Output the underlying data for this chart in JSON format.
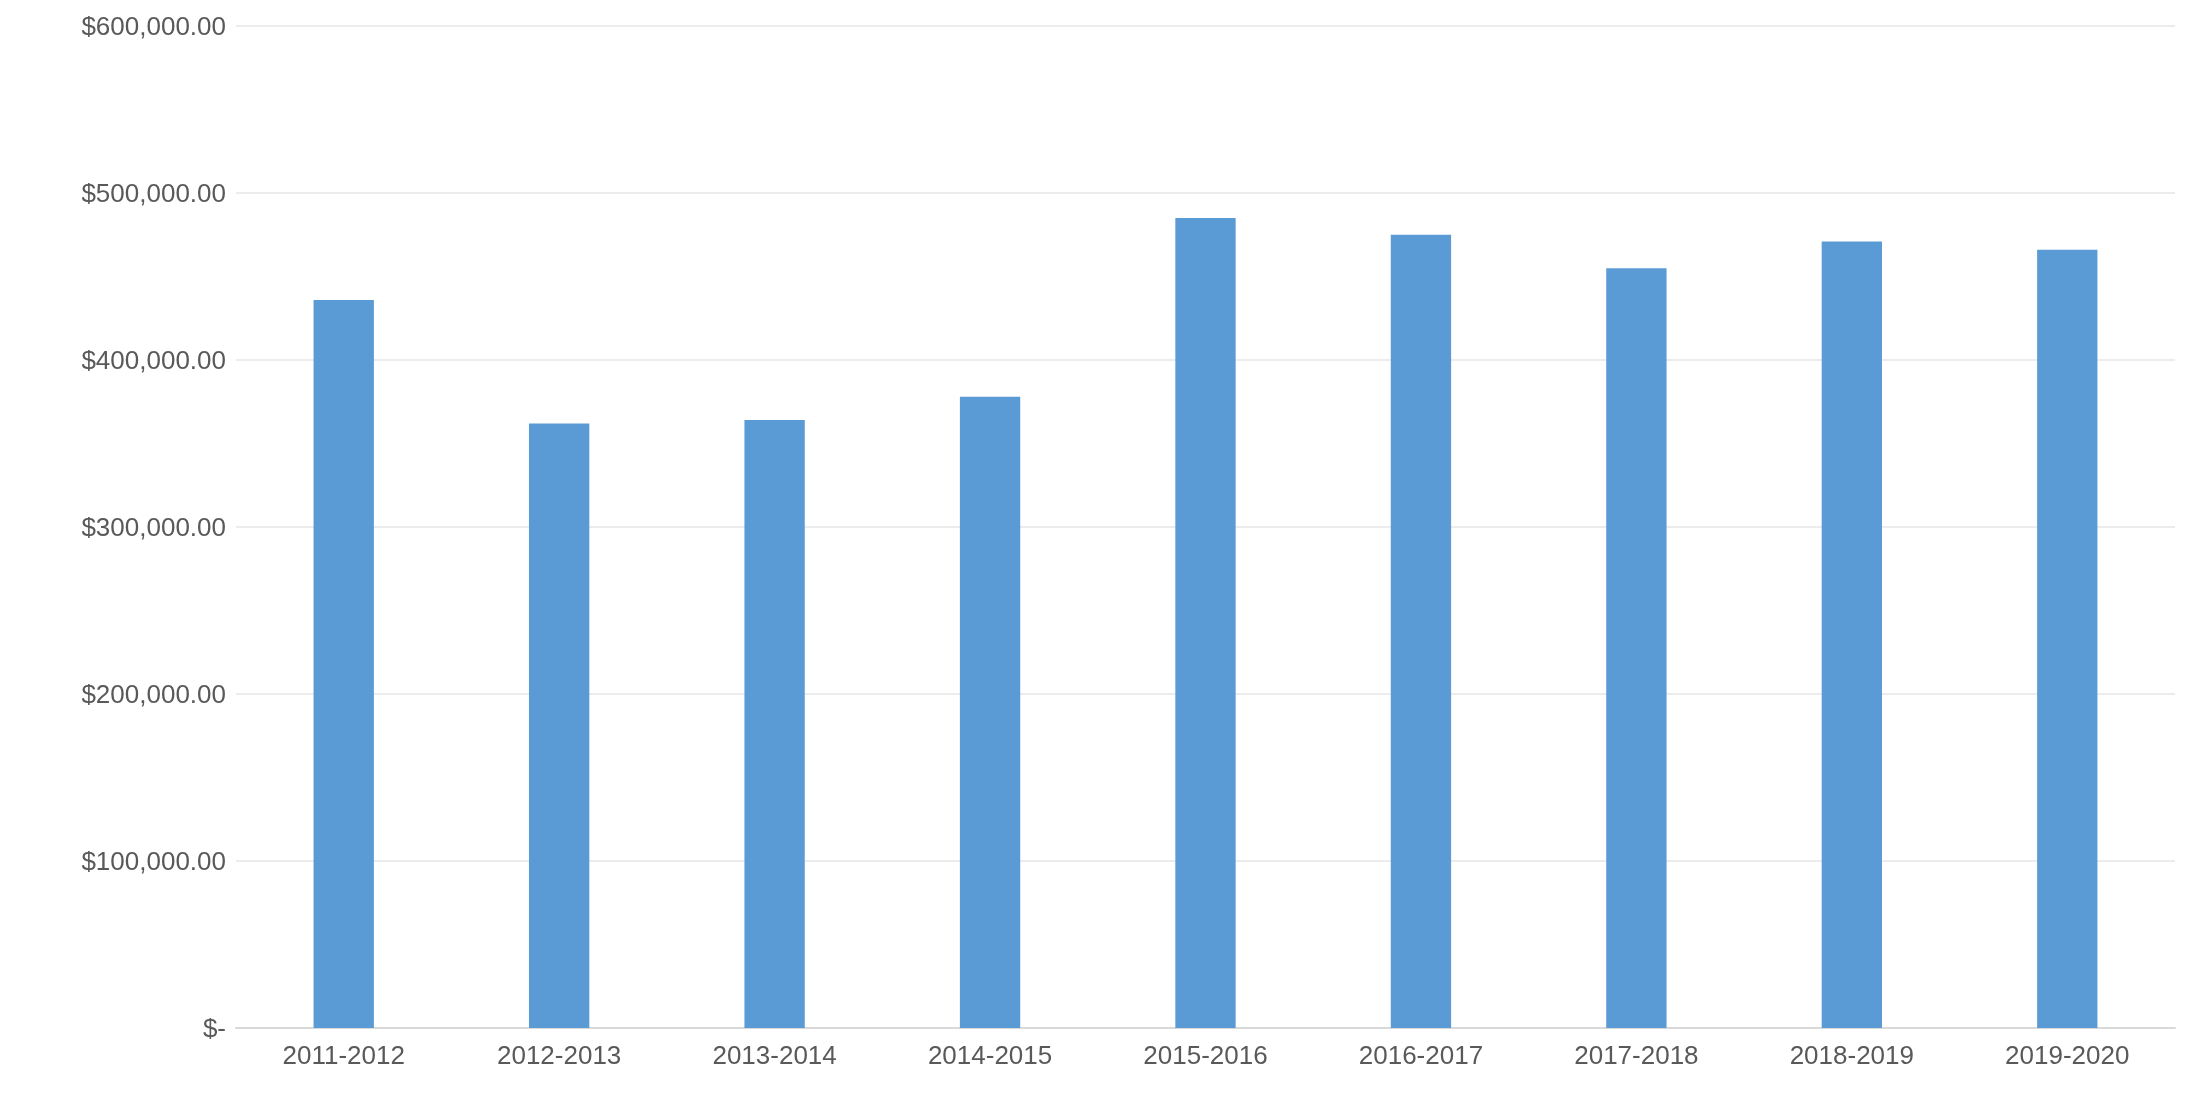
{
  "chart_data": {
    "type": "bar",
    "categories": [
      "2011-2012",
      "2012-2013",
      "2013-2014",
      "2014-2015",
      "2015-2016",
      "2016-2017",
      "2017-2018",
      "2018-2019",
      "2019-2020"
    ],
    "values": [
      436000,
      362000,
      364000,
      378000,
      485000,
      475000,
      455000,
      471000,
      466000
    ],
    "color": "#5b9bd5",
    "ylim": [
      0,
      600000
    ],
    "yticks": [
      {
        "value": 0,
        "label": "$-"
      },
      {
        "value": 100000,
        "label": "$100,000.00"
      },
      {
        "value": 200000,
        "label": "$200,000.00"
      },
      {
        "value": 300000,
        "label": "$300,000.00"
      },
      {
        "value": 400000,
        "label": "$400,000.00"
      },
      {
        "value": 500000,
        "label": "$500,000.00"
      },
      {
        "value": 600000,
        "label": "$600,000.00"
      }
    ],
    "grid": "y"
  }
}
